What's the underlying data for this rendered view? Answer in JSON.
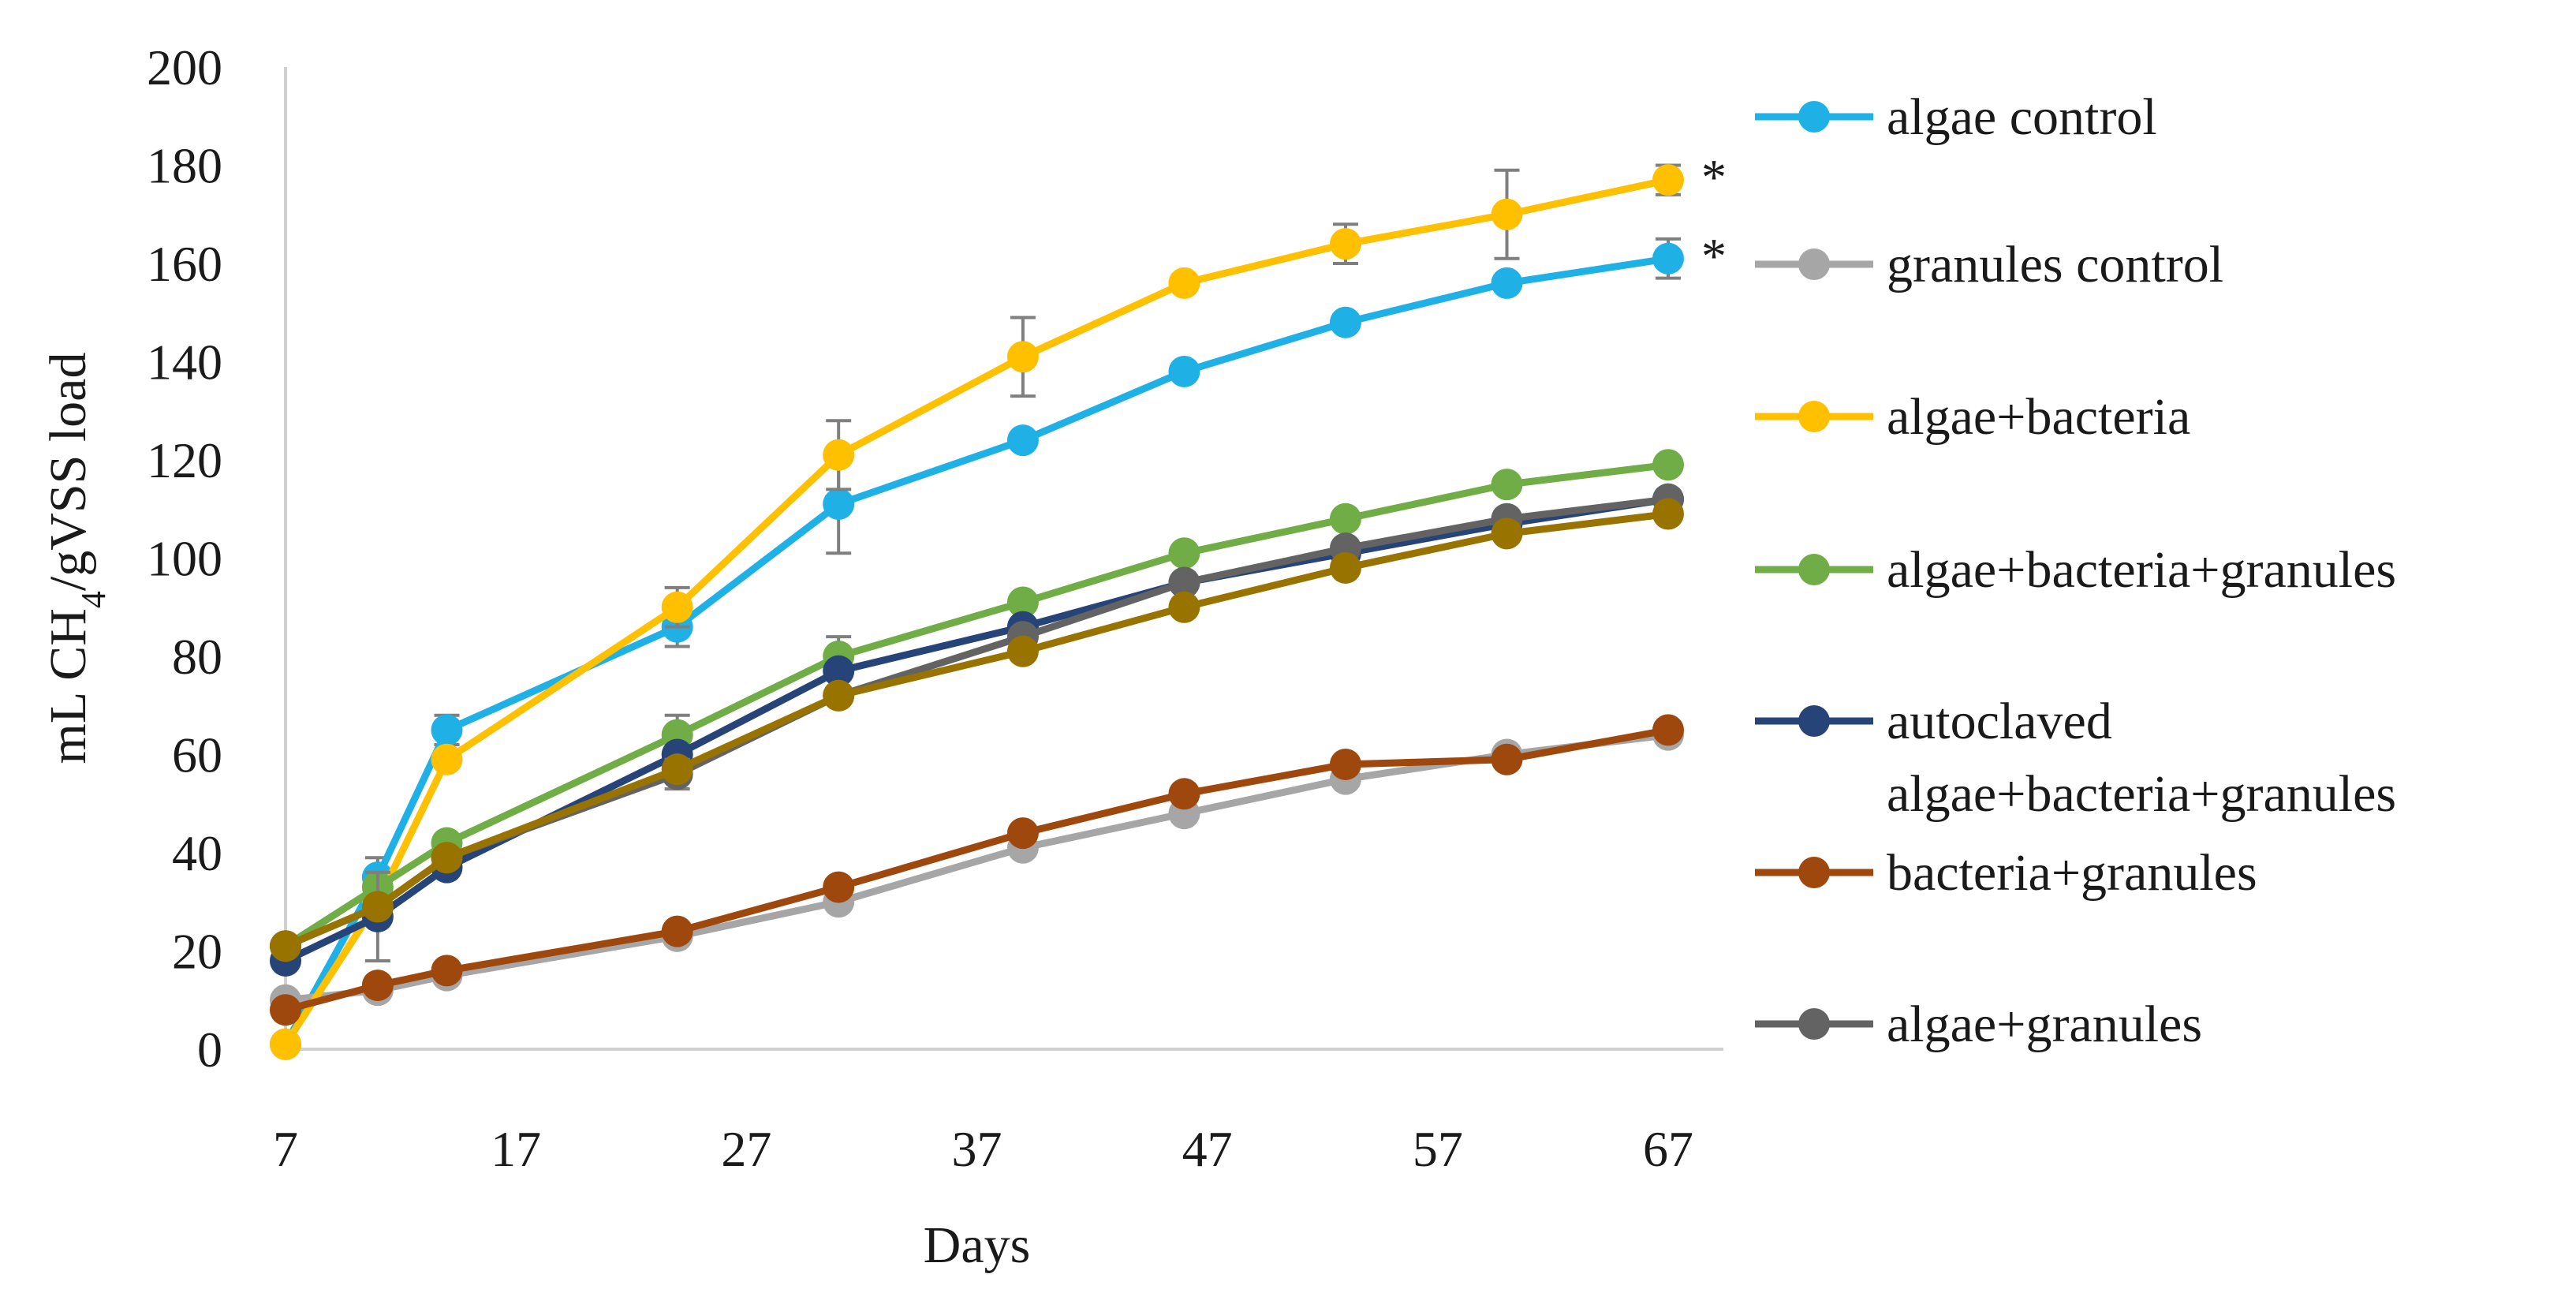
{
  "chart_data": {
    "type": "line",
    "title": "",
    "xlabel": "Days",
    "ylabel_prefix": "mL CH",
    "ylabel_subscript": "4",
    "ylabel_suffix": "/gVSS load",
    "xlim": [
      7,
      67
    ],
    "ylim": [
      0,
      200
    ],
    "xticks": [
      7,
      17,
      27,
      37,
      47,
      57,
      67
    ],
    "yticks": [
      0,
      20,
      40,
      60,
      80,
      100,
      120,
      140,
      160,
      180,
      200
    ],
    "grid": false,
    "legend_position": "right",
    "x": [
      7,
      11,
      14,
      24,
      31,
      39,
      46,
      53,
      60,
      67
    ],
    "series": [
      {
        "name": "algae control",
        "color": "#1fb1e6",
        "values": [
          1,
          35,
          65,
          86,
          111,
          124,
          138,
          148,
          156,
          161
        ],
        "errors": [
          0,
          4,
          3,
          4,
          10,
          0,
          0,
          0,
          0,
          4
        ]
      },
      {
        "name": "granules control",
        "color": "#a6a6a6",
        "values": [
          10,
          12,
          15,
          23,
          30,
          41,
          48,
          55,
          60,
          64
        ],
        "errors": [
          0,
          0,
          0,
          0,
          0,
          0,
          0,
          0,
          0,
          0
        ]
      },
      {
        "name": "algae+bacteria",
        "color": "#ffc000",
        "values": [
          1,
          30,
          59,
          90,
          121,
          141,
          156,
          164,
          170,
          177
        ],
        "errors": [
          0,
          0,
          0,
          4,
          7,
          8,
          0,
          4,
          9,
          3
        ]
      },
      {
        "name": "algae+bacteria+granules",
        "color": "#70ad47",
        "values": [
          21,
          33,
          42,
          64,
          80,
          91,
          101,
          108,
          115,
          119
        ],
        "errors": [
          0,
          0,
          0,
          4,
          4,
          0,
          0,
          0,
          0,
          0
        ]
      },
      {
        "name": "autoclaved algae+bacteria+granules",
        "name_line1": "autoclaved",
        "name_line2": "algae+bacteria+granules",
        "color": "#264478",
        "values": [
          18,
          27,
          37,
          60,
          77,
          86,
          95,
          101,
          107,
          112
        ],
        "errors": [
          0,
          9,
          0,
          0,
          0,
          0,
          0,
          0,
          0,
          0
        ]
      },
      {
        "name": "bacteria+granules",
        "color": "#9e480e",
        "values": [
          8,
          13,
          16,
          24,
          33,
          44,
          52,
          58,
          59,
          65
        ],
        "errors": [
          0,
          0,
          0,
          0,
          0,
          0,
          0,
          0,
          0,
          0
        ]
      },
      {
        "name": "algae+granules",
        "color": "#636363",
        "values": [
          21,
          29,
          39,
          56,
          72,
          84,
          95,
          102,
          108,
          112
        ],
        "errors": [
          0,
          0,
          0,
          3,
          0,
          0,
          0,
          0,
          0,
          0
        ]
      },
      {
        "name": "",
        "color": "#997300",
        "values": [
          21,
          29,
          39,
          57,
          72,
          81,
          90,
          98,
          105,
          109
        ],
        "errors": [
          0,
          0,
          0,
          0,
          0,
          0,
          0,
          0,
          0,
          0
        ]
      }
    ],
    "annotations": [
      {
        "text": "*",
        "series": "algae+bacteria"
      },
      {
        "text": "*",
        "series": "algae control"
      }
    ]
  }
}
